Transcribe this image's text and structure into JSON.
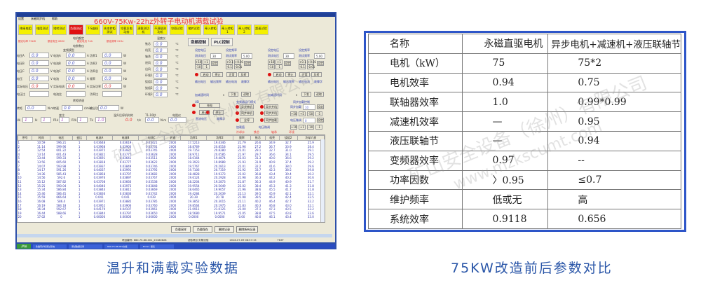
{
  "left_screenshot": {
    "window_title": "",
    "menu": [
      "设置",
      "永磁同步机",
      "帮助"
    ],
    "app_title": "660V-75Kw-22hz外转子电动机满载试验",
    "toolbar": [
      {
        "label": "绝缘电阻",
        "active": false
      },
      {
        "label": "电阻测试",
        "active": false
      },
      {
        "label": "堵转测试",
        "active": false
      },
      {
        "label": "负载测试",
        "active": true
      },
      {
        "label": "T-S曲线",
        "active": false
      },
      {
        "label": "先本转矩测试",
        "active": false
      },
      {
        "label": "空载反电动势",
        "active": false
      },
      {
        "label": "满载测功机",
        "active": false
      },
      {
        "label": "不满载测功机",
        "active": false
      },
      {
        "label": "空载试验",
        "active": false
      },
      {
        "label": "堵转试验",
        "active": false
      },
      {
        "label": "牵入转矩",
        "active": false
      },
      {
        "label": "牵入转矩1",
        "active": false
      },
      {
        "label": "牵入转矩2",
        "active": false
      },
      {
        "label": "超速试验",
        "active": false
      }
    ],
    "rated_group_title": "电机额定",
    "rated": [
      "额定功率 75kW",
      "额定电压 660V",
      "额定电流 74A",
      "额定频率 22Hz"
    ],
    "meter_group_title": "电参数仪",
    "vfd_checkbox": "变频模型",
    "elec_rows": [
      {
        "l1": "电压A",
        "v1": "0.0",
        "u1": "V",
        "l2": "电流A",
        "v2": "0.0",
        "u2": "A",
        "l3": "功率1",
        "v3": "0.0",
        "u3": "W"
      },
      {
        "l1": "电压B",
        "v1": "0.0",
        "u1": "V",
        "l2": "电流B",
        "v2": "0.0",
        "u2": "A",
        "l3": "功率2",
        "v3": "0.0",
        "u3": "W"
      },
      {
        "l1": "电压C",
        "v1": "0.0",
        "u1": "V",
        "l2": "电流C",
        "v2": "0.0",
        "u2": "A",
        "l3": "功率总",
        "v3": "0.0",
        "u3": "W"
      },
      {
        "l1": "电压",
        "v1": "0.0",
        "u1": "V",
        "l2": "电流",
        "v2": "0.0",
        "u2": "A",
        "l3": "频率",
        "v3": "0.0",
        "u3": "Hz"
      },
      {
        "l1": "实际电压",
        "v1": "0.0",
        "u1": "V",
        "l2": "实际电流",
        "v2": "0.0",
        "u2": "A",
        "l3": "实际功率",
        "v3": "0.0",
        "u3": "W"
      }
    ],
    "ratio_labels": [
      "电压比",
      "电流比",
      "功率比"
    ],
    "torque_group_title": "转矩转速",
    "torque": {
      "l1": "转矩",
      "v1": "0.0",
      "u1": "N.m",
      "l2": "转速",
      "v2": "0.0",
      "u2": "r/min",
      "l3": "输出功率",
      "v3": "0.0",
      "u3": "W"
    },
    "ratio_group_title": "变比",
    "ratios": [
      {
        "l": "Uk",
        "v": "1"
      },
      {
        "l": "Ik",
        "v": "1"
      },
      {
        "l": "P1k",
        "v": "1"
      },
      {
        "l": "P2k",
        "v": "1"
      },
      {
        "l": "Tk",
        "v": "1.0"
      }
    ],
    "cold_title": "温升后停机时的",
    "cold_value": "0.0",
    "cold_unit": "t/s",
    "tq_title": "T1-10秒",
    "tq_value": "0.0",
    "tq_unit": "N.m",
    "res_title": "电阻仪",
    "res_value": "0.0",
    "temp_group_title": "温度仪",
    "temps": [
      {
        "l": "铁芯",
        "v": "0.0"
      },
      {
        "l": "机壳",
        "v": "0.0"
      },
      {
        "l": "轴承",
        "v": "0.0"
      },
      {
        "l": "进风",
        "v": "0.0"
      },
      {
        "l": "出风",
        "v": "0.0"
      },
      {
        "l": "环境1",
        "v": "0.0"
      },
      {
        "l": "绕组1",
        "v": "0.0"
      },
      {
        "l": "绕组2",
        "v": "0.0"
      },
      {
        "l": "环境3",
        "v": "0.0"
      }
    ],
    "temp_unit": "℃",
    "tabs": [
      "变频控制",
      "PLC控制"
    ],
    "vfd_panel": {
      "set_voltage": "设定电压",
      "set_freq": "设定频率",
      "test_voltage": "测试电压",
      "test_freq": "测试频率",
      "voltage_value": "30",
      "freq_value": "5.00",
      "steps": [
        "+10",
        "+1",
        "-10",
        "-1",
        "+0.1",
        "+0.01",
        "-0.1",
        "-0.01"
      ],
      "set": "设定",
      "start": "启动",
      "stop": "停止",
      "forward": "正常",
      "reverse": "反转",
      "out_labels": [
        "输出电压",
        "输出频率",
        "输出电流",
        "故障字"
      ],
      "accel": "加减速时间",
      "accel_unit": "s",
      "download": "下发",
      "read": "读取"
    },
    "mode_group_title": "变频器运行模式",
    "modes": [
      "异步单机",
      "异步并机",
      "同步单机",
      "同步并机",
      "全停",
      "同步加载"
    ],
    "dc_group_title": "UD",
    "dc": {
      "charge": "充电",
      "start": "启动",
      "stop": "停止",
      "dc_voltage": "直流电压",
      "fault": "故障字"
    },
    "sync_group_title": "同步加载控制",
    "sync": {
      "load": "同步加载",
      "load_value": "10",
      "volt_adj": "电压微调",
      "volt_value": "0",
      "set": "设定",
      "steps": [
        "+50",
        "+5",
        "-50",
        "-5",
        "+10",
        "+1",
        "-10",
        "-1"
      ]
    },
    "bottom_fields": [
      "加载值",
      "电压微调"
    ],
    "table_header_colors_labels": [
      "冷却水",
      "铁芯",
      "轴承",
      "环境"
    ],
    "table": {
      "columns": [
        "序号",
        "时间",
        "电压",
        "变比",
        "电流A",
        "电流B",
        "电流C",
        "转速",
        "功率1",
        "功率2",
        "频率",
        "铁芯",
        "机壳",
        "绕组2",
        "冷却介质"
      ],
      "rows": [
        [
          "1",
          "10:59",
          "596.21",
          "1",
          "0.03648",
          "0.03619",
          "0.03421",
          "2000",
          "17.5213",
          "19.4346",
          "21.79",
          "26.6",
          "34.9",
          "32.7",
          "25.9"
        ],
        [
          "2",
          "11:14",
          "599.96",
          "1",
          "0.03968",
          "0.03900",
          "0.03731",
          "2000",
          "18.8769",
          "20.8518",
          "21.96",
          "27.2",
          "36.7",
          "33.9",
          "28.4"
        ],
        [
          "3",
          "12:54",
          "601.22",
          "1",
          "0.03975",
          "0.03927",
          "0.03745",
          "2000",
          "19.7153",
          "20.8280",
          "22.01",
          "29.1",
          "32.7",
          "31.0",
          "29.1"
        ],
        [
          "4",
          "13:14",
          "601.43",
          "1",
          "0.03822",
          "0.03775",
          "0.03628",
          "2000",
          "18.9711",
          "20.0585",
          "21.97",
          "29.7",
          "36.6",
          "34.1",
          "29.5"
        ],
        [
          "5",
          "13:44",
          "599.33",
          "1",
          "0.03691",
          "0.03641",
          "0.03511",
          "2000",
          "18.0164",
          "19.4874",
          "22.03",
          "31.3",
          "40.0",
          "36.6",
          "29.2"
        ],
        [
          "6",
          "13:56",
          "605.60",
          "1",
          "0.03818",
          "0.03777",
          "0.03622",
          "2000",
          "19.3923",
          "19.8989",
          "21.93",
          "31.9",
          "40.9",
          "37.4",
          "29.2"
        ],
        [
          "7",
          "14:07",
          "593.98",
          "1",
          "0.03937",
          "0.03849",
          "0.03746",
          "2000",
          "19.5767",
          "20.2813",
          "22.01",
          "32.2",
          "41.6",
          "38.0",
          "29.6"
        ],
        [
          "8",
          "14:17",
          "591.26",
          "1",
          "0.04037",
          "0.03991",
          "0.03795",
          "2000",
          "19.7106",
          "20.7319",
          "21.92",
          "33.7",
          "42.3",
          "38.5",
          "29.8"
        ],
        [
          "9",
          "14:36",
          "585.43",
          "1",
          "0.03858",
          "0.03797",
          "0.03682",
          "2000",
          "18.4828",
          "19.9373",
          "22.02",
          "36.8",
          "43.4",
          "39.4",
          "30.2"
        ],
        [
          "10",
          "14:56",
          "592.6",
          "1",
          "0.03976",
          "0.03897",
          "0.03767",
          "2000",
          "19.6124",
          "20.2928",
          "21.98",
          "36.3",
          "44.2",
          "40.2",
          "30.6"
        ],
        [
          "11",
          "15:12",
          "587.82",
          "1",
          "0.03708",
          "0.03666",
          "0.03538",
          "2000",
          "18.2204",
          "19.2873",
          "21.87",
          "36.3",
          "44.9",
          "40.9",
          "31.7"
        ],
        [
          "12",
          "15:25",
          "590.04",
          "1",
          "0.04046",
          "0.03973",
          "0.03848",
          "2000",
          "19.9554",
          "20.5649",
          "22.02",
          "38.4",
          "45.3",
          "41.3",
          "31.8"
        ],
        [
          "13",
          "15:34",
          "586.84",
          "1",
          "0.03844",
          "0.03811",
          "0.03669",
          "2000",
          "18.6465",
          "19.9057",
          "21.96",
          "38.6",
          "45.5",
          "41.7",
          "31.8"
        ],
        [
          "14",
          "15:46",
          "586.45",
          "1",
          "0.03836",
          "0.03836",
          "0.03742",
          "2000",
          "19.4284",
          "20.2639",
          "22.13",
          "39.5",
          "45.9",
          "42.1",
          "32.1"
        ],
        [
          "15",
          "15:59",
          "666.64",
          "1",
          "0.041",
          "0.041",
          "0.039",
          "2000",
          "20.39",
          "20.78",
          "21.98",
          "39.5",
          "46.2",
          "42.4",
          "32.5"
        ],
        [
          "16",
          "16:08",
          "586.4",
          "1",
          "0.03971",
          "0.03885",
          "0.03785",
          "2000",
          "19.3852",
          "20.3015",
          "22.11",
          "40.2",
          "46.4",
          "42.7",
          "32.2"
        ],
        [
          "17",
          "16:19",
          "584.18",
          "1",
          "0.03952",
          "0.03906",
          "0.03760",
          "2000",
          "19.8564",
          "20.1975",
          "21.83",
          "40.3",
          "46.8",
          "43.0",
          "32.1"
        ],
        [
          "18",
          "16:34",
          "592.67",
          "1",
          "0.04179",
          "0.04107",
          "0.03961",
          "2000",
          "21.0911",
          "21.0125",
          "22.00",
          "37.1",
          "47.3",
          "43.5",
          "33.2"
        ],
        [
          "19",
          "16:44",
          "588.66",
          "1",
          "0.03844",
          "0.03797",
          "0.03650",
          "2000",
          "18.5680",
          "19.9571",
          "22.05",
          "38.8",
          "47.5",
          "43.8",
          "33.6"
        ],
        [
          "20",
          "17:02",
          "0",
          "1",
          "0.00000",
          "0.00000",
          "0.00000",
          "2000",
          "0.0000",
          "0.0000",
          "0.00",
          "40.0",
          "46.1",
          "43.4",
          "33.0"
        ]
      ]
    },
    "bottom_buttons": [
      "负载采样",
      "负载保存",
      "删除记录",
      "删除所有记录"
    ],
    "status": {
      "project_no": "项目编号: 660-75-66-001_20180628",
      "test_item": "试验项目 负载试验",
      "datetime": "2018-07-09 08:57:15",
      "right": "TEXT"
    },
    "taskbar": {
      "start": "开始",
      "tasks": [
        "永磁同步机测试系统",
        "测试数据记录",
        "660-75-66-001文档",
        "Excel - 报表"
      ]
    }
  },
  "comparison_table": {
    "header": [
      "名称",
      "永磁直驱电机",
      "异步电机+减速机+液压联轴节"
    ],
    "rows": [
      [
        "电机（kW）",
        "75",
        "75*2"
      ],
      [
        "电机效率",
        "0.94",
        "0.75"
      ],
      [
        "联轴器效率",
        "1.0",
        "0.99*0.99"
      ],
      [
        "减速机效率",
        "—",
        "0.95"
      ],
      [
        "液压联轴节",
        "—",
        "0.94"
      ],
      [
        "变频器效率",
        "0.97",
        "--"
      ],
      [
        "功率因数",
        "〉0.95",
        "≤0.7"
      ],
      [
        "维护频率",
        "低或无",
        "高"
      ],
      [
        "系统效率",
        "0.9118",
        "0.656"
      ]
    ]
  },
  "watermark": {
    "company": "矿山安全设备（徐州）有限公司",
    "url": "www.mzkscumt.com"
  },
  "captions": {
    "left": "温升和满载实验数据",
    "right": "75KW改造前后参数对比"
  },
  "colors": {
    "accent_blue": "#2d55c8",
    "caption": "#2a56a8",
    "toolbar_yellow": "#f4f000",
    "active_red": "#e01010",
    "title_red": "#e33333"
  }
}
